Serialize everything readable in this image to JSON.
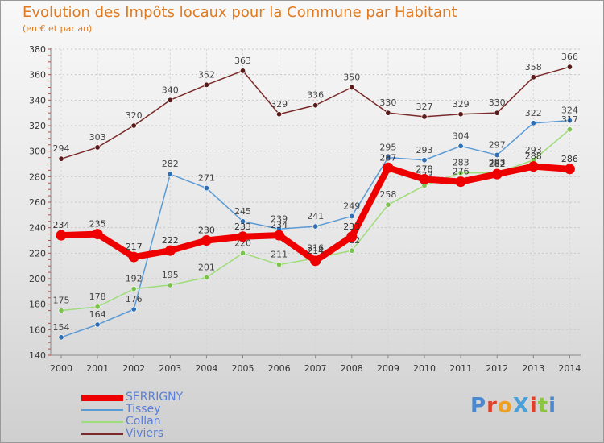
{
  "title": "Evolution des Impôts locaux pour la Commune par Habitant",
  "subtitle": "(en € et par an)",
  "logo": {
    "text": "ProXiti",
    "letter_colors": [
      "#4b88d0",
      "#e0402a",
      "#f0a020",
      "#4aa0d8",
      "#e0402a",
      "#8cc63f",
      "#4b88d0"
    ]
  },
  "chart_data": {
    "type": "line",
    "title": "Evolution des Impôts locaux pour la Commune par Habitant",
    "subtitle": "(en € et par an)",
    "categories": [
      "2000",
      "2001",
      "2002",
      "2003",
      "2004",
      "2005",
      "2006",
      "2007",
      "2008",
      "2009",
      "2010",
      "2011",
      "2012",
      "2013",
      "2014"
    ],
    "ylim": [
      140,
      380
    ],
    "yticks": [
      140,
      160,
      180,
      200,
      220,
      240,
      260,
      280,
      300,
      320,
      340,
      360,
      380
    ],
    "grid": "horizontal dashed",
    "legend_position": "bottom-left",
    "series": [
      {
        "name": "Viviers",
        "color": "#7a2a2a",
        "label_color": "#444444",
        "marker_color": "#5a1a1a",
        "values": [
          294,
          303,
          320,
          340,
          352,
          363,
          329,
          336,
          350,
          330,
          327,
          329,
          330,
          358,
          366
        ]
      },
      {
        "name": "Tissey",
        "color": "#5b9bd5",
        "label_color": "#444444",
        "marker_color": "#2e6fb5",
        "values": [
          154,
          164,
          176,
          282,
          271,
          245,
          239,
          241,
          249,
          295,
          293,
          304,
          297,
          322,
          324
        ]
      },
      {
        "name": "Collan",
        "color": "#9fdc7a",
        "label_color": "#444444",
        "marker_color": "#7cc24f",
        "values": [
          175,
          178,
          192,
          195,
          201,
          220,
          211,
          216,
          222,
          258,
          273,
          283,
          283,
          293,
          317
        ]
      },
      {
        "name": "SERRIGNY",
        "color": "#ee0000",
        "label_color": "#333333",
        "marker_color": "#ee0000",
        "values": [
          234,
          235,
          217,
          222,
          230,
          233,
          234,
          214,
          233,
          287,
          278,
          276,
          282,
          288,
          286
        ]
      }
    ]
  }
}
